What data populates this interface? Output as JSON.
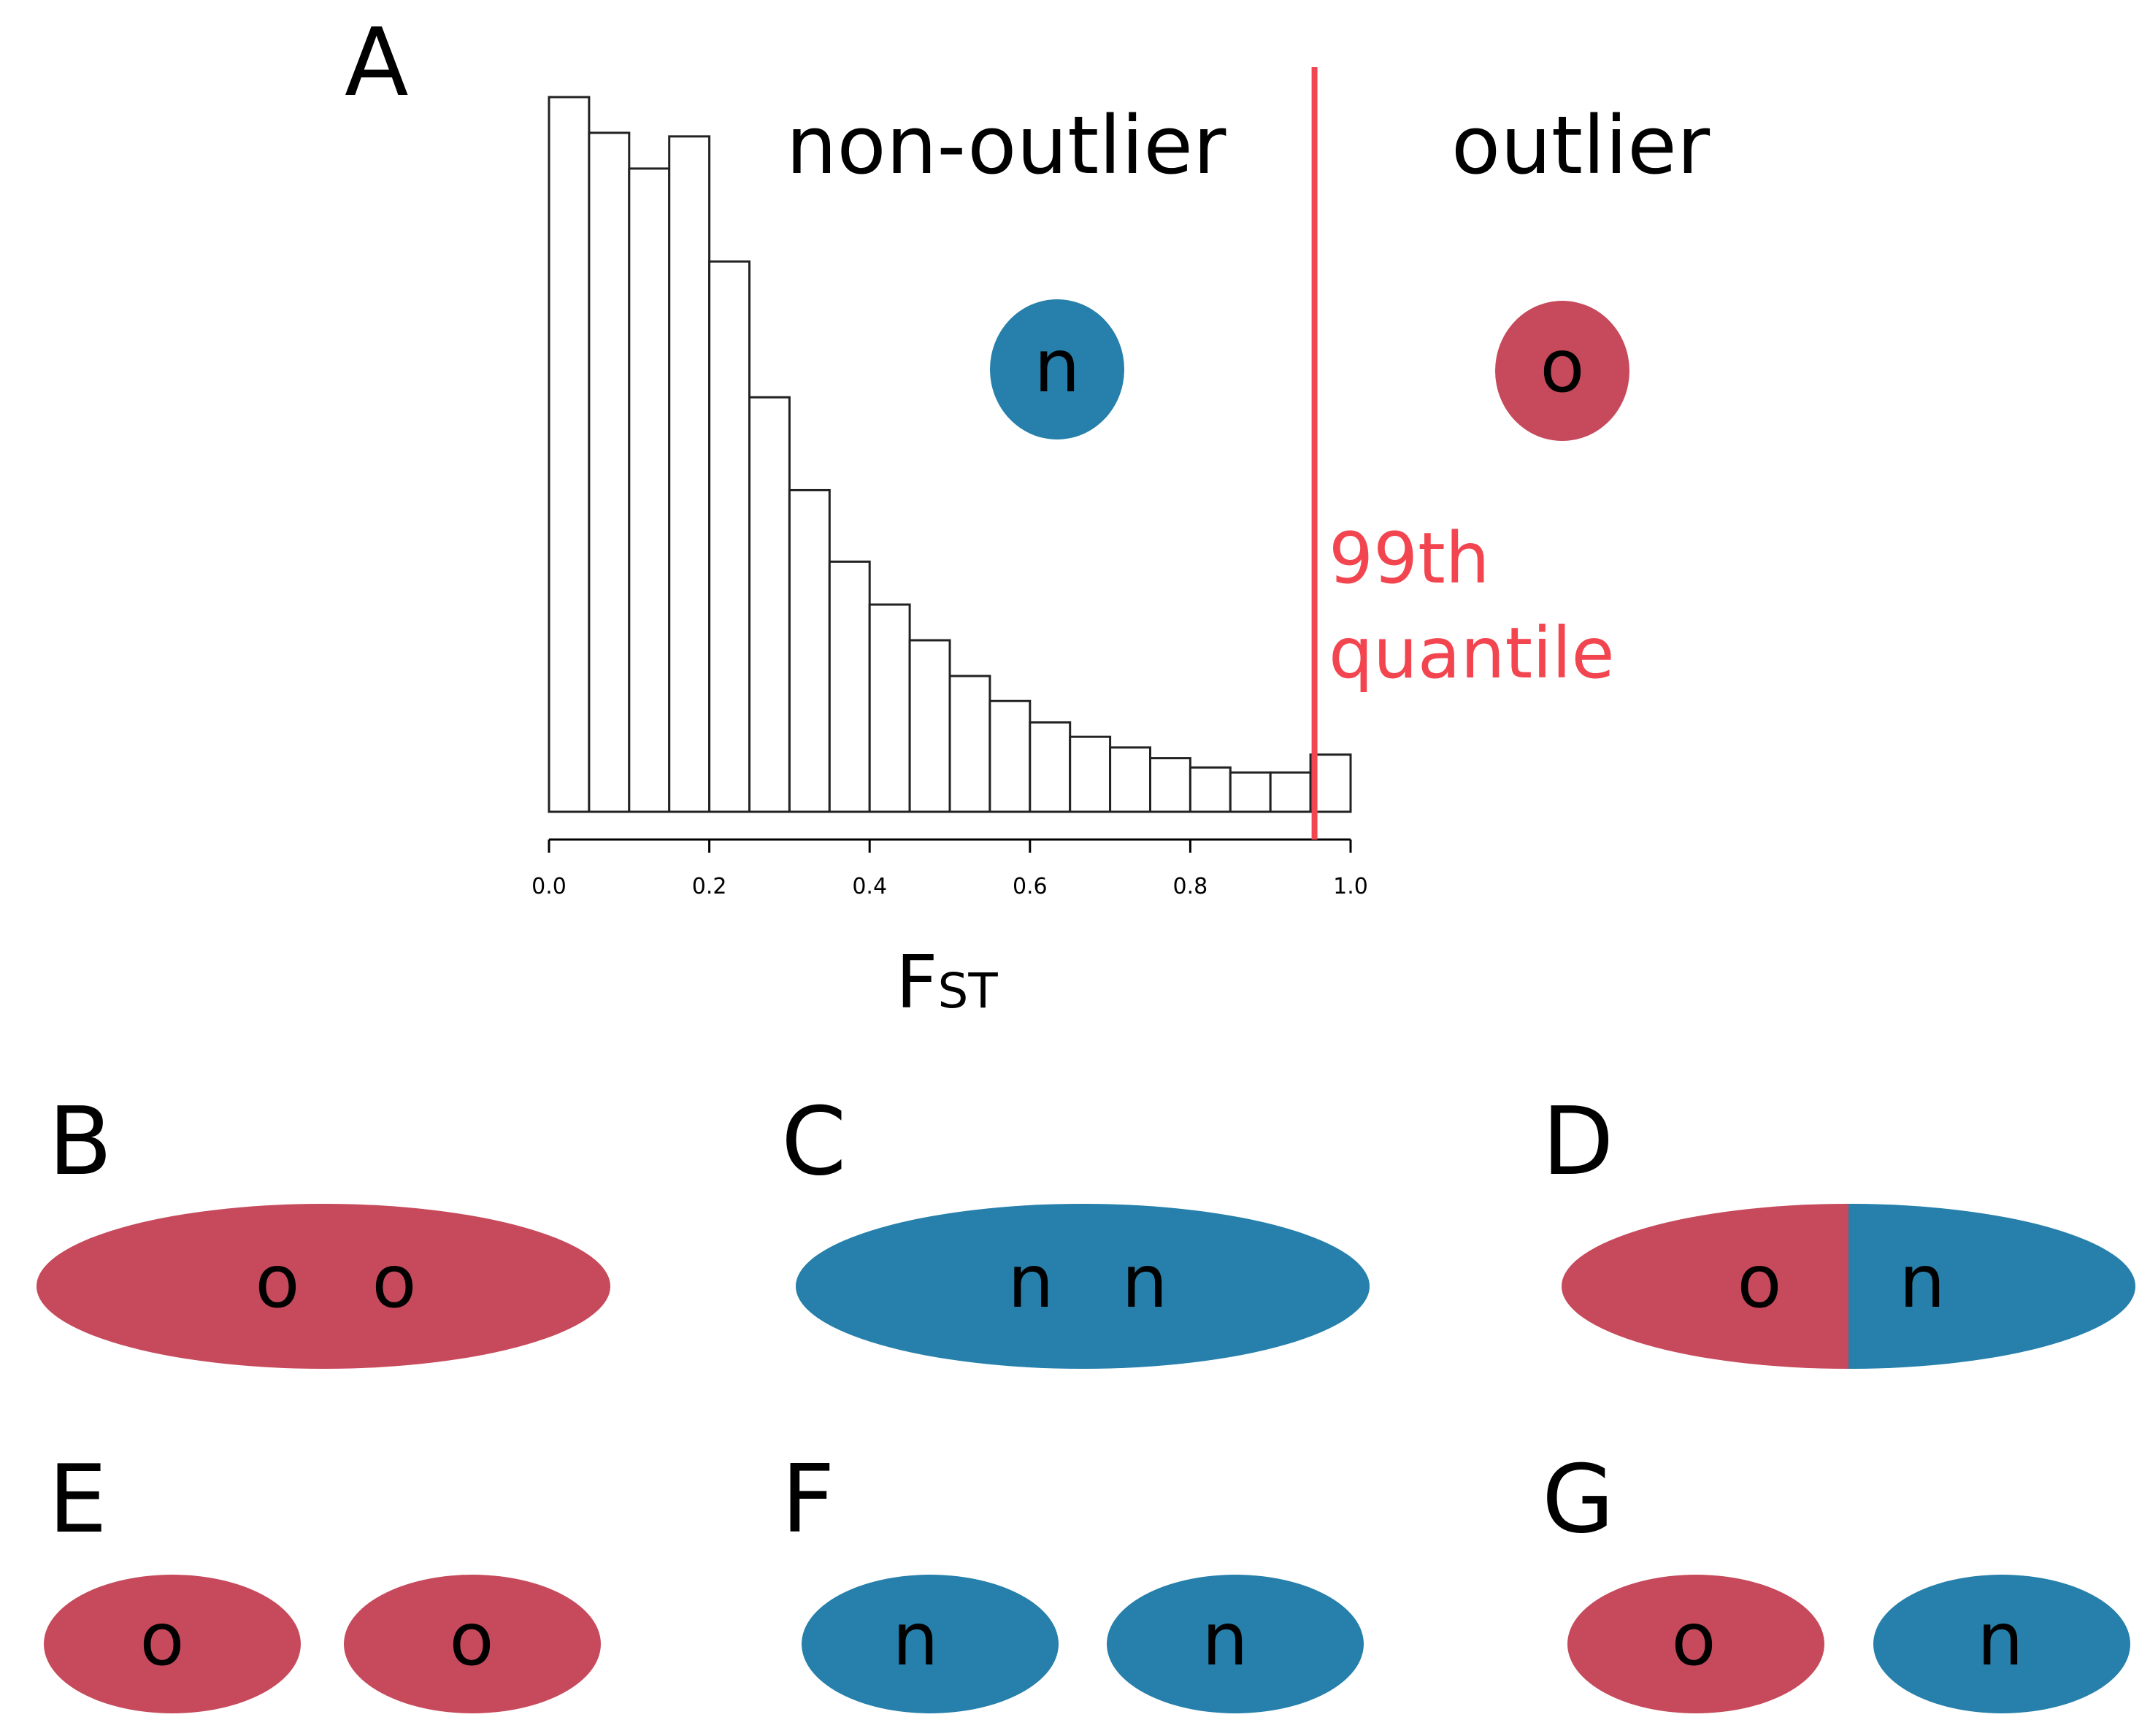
{
  "colors": {
    "outlier": "#c64a5c",
    "non_outlier": "#2680ab",
    "threshold": "#f2454f"
  },
  "panel_a": {
    "letter": "A",
    "label_non_outlier": "non-outlier",
    "label_outlier": "outlier",
    "glyph_non_outlier": "n",
    "glyph_outlier": "o",
    "threshold_line1": "99th",
    "threshold_line2": "quantile",
    "xlabel_main": "F",
    "xlabel_sub": "ST"
  },
  "chart_data": {
    "type": "bar",
    "title": "",
    "xlabel": "FST",
    "ylabel": "",
    "xlim": [
      0.0,
      1.0
    ],
    "bin_width": 0.05,
    "bin_starts": [
      0.0,
      0.05,
      0.1,
      0.15,
      0.2,
      0.25,
      0.3,
      0.35,
      0.4,
      0.45,
      0.5,
      0.55,
      0.6,
      0.65,
      0.7,
      0.75,
      0.8,
      0.85,
      0.9,
      0.95
    ],
    "values": [
      100,
      95,
      90,
      94.5,
      77,
      58,
      45,
      35,
      29,
      24,
      19,
      15.5,
      12.5,
      10.5,
      9,
      7.5,
      6.2,
      5.5,
      5.5,
      8
    ],
    "ylim": [
      0,
      100
    ],
    "threshold_x": 0.955,
    "ticks": [
      0.0,
      0.2,
      0.4,
      0.6,
      0.8,
      1.0
    ],
    "tick_labels": [
      "0.0",
      "0.2",
      "0.4",
      "0.6",
      "0.8",
      "1.0"
    ]
  },
  "panels": {
    "B": {
      "letter": "B",
      "left": "o",
      "right": "o"
    },
    "C": {
      "letter": "C",
      "left": "n",
      "right": "n"
    },
    "D": {
      "letter": "D",
      "left": "o",
      "right": "n"
    },
    "E": {
      "letter": "E",
      "left": "o",
      "right": "o"
    },
    "F": {
      "letter": "F",
      "left": "n",
      "right": "n"
    },
    "G": {
      "letter": "G",
      "left": "o",
      "right": "n"
    }
  }
}
